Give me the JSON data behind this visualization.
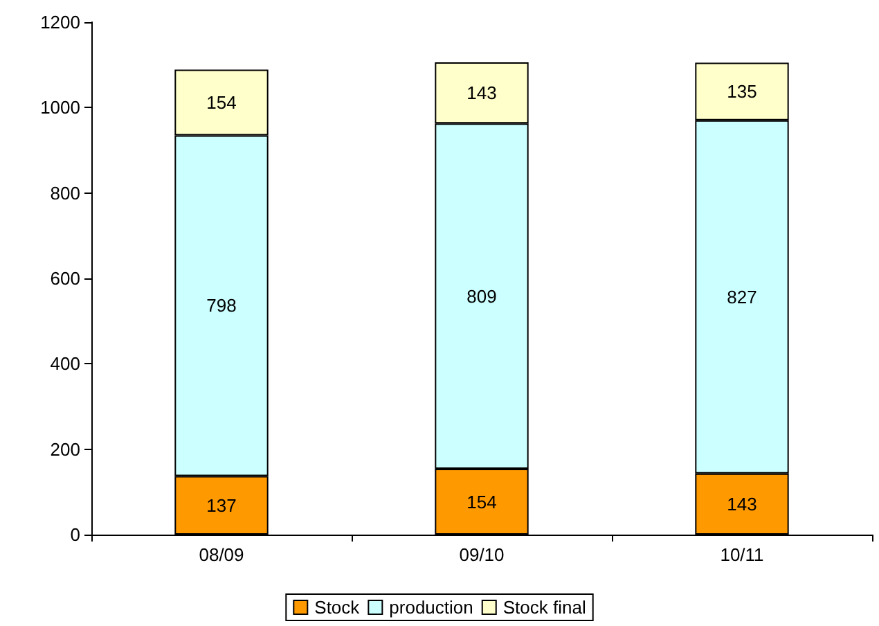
{
  "chart_data": {
    "type": "bar",
    "stacked": true,
    "categories": [
      "08/09",
      "09/10",
      "10/11"
    ],
    "series": [
      {
        "name": "Stock",
        "color": "#ff9900",
        "values": [
          137,
          154,
          143
        ]
      },
      {
        "name": "production",
        "color": "#ccffff",
        "values": [
          798,
          809,
          827
        ]
      },
      {
        "name": "Stock final",
        "color": "#ffffcc",
        "values": [
          154,
          143,
          135
        ]
      }
    ],
    "ylim": [
      0,
      1200
    ],
    "yticks": [
      0,
      200,
      400,
      600,
      800,
      1000,
      1200
    ],
    "grid": false,
    "legend": "bottom",
    "data_labels": true
  }
}
